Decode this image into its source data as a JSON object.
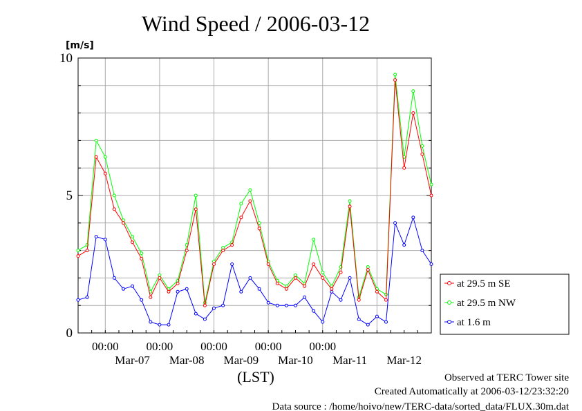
{
  "chart_data": {
    "type": "line",
    "title": "Wind Speed / 2006-03-12",
    "ylabel": "[m/s]",
    "xlabel": "(LST)",
    "ylim": [
      0,
      10
    ],
    "y_ticks": [
      "0",
      "5",
      "10"
    ],
    "x_time_ticks": [
      "00:00",
      "00:00",
      "00:00",
      "00:00",
      "00:00"
    ],
    "x_date_labels": [
      "Mar-07",
      "Mar-08",
      "Mar-09",
      "Mar-10",
      "Mar-11",
      "Mar-12"
    ],
    "xlim": [
      "2006-03-06 12:00",
      "2006-03-12 24:00"
    ],
    "grid": true,
    "legend_position": "lower-right, outside plot",
    "x": [
      "2006-03-06 12:00",
      "2006-03-06 16:00",
      "2006-03-06 20:00",
      "2006-03-07 00:00",
      "2006-03-07 04:00",
      "2006-03-07 08:00",
      "2006-03-07 12:00",
      "2006-03-07 16:00",
      "2006-03-07 20:00",
      "2006-03-08 00:00",
      "2006-03-08 04:00",
      "2006-03-08 08:00",
      "2006-03-08 12:00",
      "2006-03-08 16:00",
      "2006-03-08 20:00",
      "2006-03-09 00:00",
      "2006-03-09 04:00",
      "2006-03-09 08:00",
      "2006-03-09 12:00",
      "2006-03-09 16:00",
      "2006-03-09 20:00",
      "2006-03-10 00:00",
      "2006-03-10 04:00",
      "2006-03-10 08:00",
      "2006-03-10 12:00",
      "2006-03-10 16:00",
      "2006-03-10 20:00",
      "2006-03-11 00:00",
      "2006-03-11 04:00",
      "2006-03-11 08:00",
      "2006-03-11 12:00",
      "2006-03-11 16:00",
      "2006-03-11 20:00",
      "2006-03-12 00:00",
      "2006-03-12 04:00",
      "2006-03-12 08:00",
      "2006-03-12 12:00",
      "2006-03-12 16:00",
      "2006-03-12 20:00",
      "2006-03-12 24:00"
    ],
    "series": [
      {
        "name": "at 29.5 m SE",
        "color": "#ff0000",
        "marker": "circle",
        "values": [
          2.8,
          3.0,
          6.4,
          5.8,
          4.5,
          4.0,
          3.3,
          2.7,
          1.3,
          2.0,
          1.5,
          1.8,
          3.0,
          4.5,
          1.0,
          2.5,
          3.0,
          3.2,
          4.2,
          4.8,
          3.8,
          2.5,
          1.8,
          1.6,
          2.0,
          1.7,
          2.5,
          2.0,
          1.6,
          2.2,
          4.6,
          1.2,
          2.3,
          1.5,
          1.2,
          9.2,
          6.0,
          8.0,
          6.5,
          5.0
        ]
      },
      {
        "name": "at 29.5 m NW",
        "color": "#00ff00",
        "marker": "circle",
        "values": [
          3.0,
          3.2,
          7.0,
          6.4,
          5.0,
          4.1,
          3.5,
          2.9,
          1.5,
          2.1,
          1.6,
          1.9,
          3.2,
          5.0,
          1.1,
          2.6,
          3.1,
          3.3,
          4.7,
          5.2,
          4.0,
          2.6,
          1.9,
          1.7,
          2.1,
          1.8,
          3.4,
          2.2,
          1.7,
          2.4,
          4.8,
          1.3,
          2.4,
          1.6,
          1.4,
          9.4,
          6.4,
          8.8,
          6.8,
          5.4
        ]
      },
      {
        "name": "at 1.6 m",
        "color": "#0000ff",
        "marker": "circle",
        "values": [
          1.2,
          1.3,
          3.5,
          3.4,
          2.0,
          1.6,
          1.7,
          1.2,
          0.4,
          0.3,
          0.3,
          1.5,
          1.6,
          0.7,
          0.5,
          0.9,
          1.0,
          2.5,
          1.5,
          2.0,
          1.6,
          1.1,
          1.0,
          1.0,
          1.0,
          1.3,
          0.8,
          0.4,
          1.5,
          1.2,
          2.0,
          0.5,
          0.3,
          0.6,
          0.4,
          4.0,
          3.2,
          4.2,
          3.0,
          2.5
        ]
      }
    ],
    "annotations": [
      "Observed at TERC Tower site",
      "Created Automatically at 2006-03-12/23:32:20",
      "Data source : /home/hoivo/new/TERC-data/sorted_data/FLUX.30m.dat"
    ]
  }
}
